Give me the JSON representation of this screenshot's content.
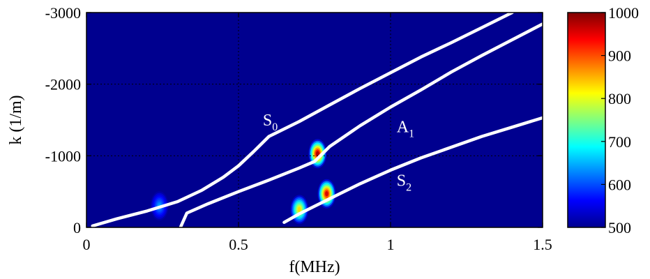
{
  "chart_data": {
    "type": "heatmap",
    "xlabel": "f(MHz)",
    "ylabel": "k (1/m)",
    "xlim": [
      0,
      1.5
    ],
    "ylim": [
      0,
      -3000
    ],
    "x_ticks": [
      0,
      0.5,
      1,
      1.5
    ],
    "x_tick_labels": [
      "0",
      "0.5",
      "1",
      "1.5"
    ],
    "y_ticks": [
      0,
      -1000,
      -2000,
      -3000
    ],
    "y_tick_labels": [
      "0",
      "-1000",
      "-2000",
      "-3000"
    ],
    "grid": true,
    "background_value": 500,
    "colorbar": {
      "min": 500,
      "max": 1000,
      "ticks": [
        500,
        600,
        700,
        800,
        900,
        1000
      ],
      "tick_labels": [
        "500",
        "600",
        "700",
        "800",
        "900",
        "1000"
      ],
      "colormap": "jet"
    },
    "hotspots": [
      {
        "x": 0.24,
        "y": -300,
        "value": 640
      },
      {
        "x": 0.76,
        "y": -1030,
        "value": 980
      },
      {
        "x": 0.7,
        "y": -250,
        "value": 830
      },
      {
        "x": 0.79,
        "y": -470,
        "value": 960
      }
    ],
    "series": [
      {
        "name": "S0",
        "color": "#ffffff",
        "x": [
          0.02,
          0.1,
          0.2,
          0.3,
          0.38,
          0.45,
          0.5,
          0.55,
          0.6,
          0.7,
          0.8,
          0.9,
          1.0,
          1.1,
          1.2,
          1.3,
          1.4
        ],
        "y": [
          -20,
          -120,
          -230,
          -360,
          -520,
          -700,
          -860,
          -1060,
          -1270,
          -1480,
          -1710,
          -1940,
          -2160,
          -2380,
          -2580,
          -2790,
          -3000
        ]
      },
      {
        "name": "A1",
        "color": "#ffffff",
        "x": [
          0.31,
          0.33,
          0.4,
          0.5,
          0.6,
          0.7,
          0.75,
          0.8,
          0.9,
          1.0,
          1.1,
          1.2,
          1.3,
          1.4,
          1.5
        ],
        "y": [
          -10,
          -200,
          -330,
          -500,
          -660,
          -830,
          -920,
          -1130,
          -1420,
          -1680,
          -1920,
          -2170,
          -2400,
          -2620,
          -2840
        ]
      },
      {
        "name": "S2",
        "color": "#ffffff",
        "x": [
          0.65,
          0.7,
          0.8,
          0.9,
          1.0,
          1.1,
          1.2,
          1.3,
          1.4,
          1.5
        ],
        "y": [
          -70,
          -190,
          -400,
          -610,
          -800,
          -970,
          -1120,
          -1270,
          -1400,
          -1530
        ]
      }
    ],
    "labels": [
      {
        "main": "S",
        "sub": "0",
        "x": 0.58,
        "y": -1420
      },
      {
        "main": "A",
        "sub": "1",
        "x": 1.02,
        "y": -1330
      },
      {
        "main": "S",
        "sub": "2",
        "x": 1.02,
        "y": -580
      }
    ]
  }
}
